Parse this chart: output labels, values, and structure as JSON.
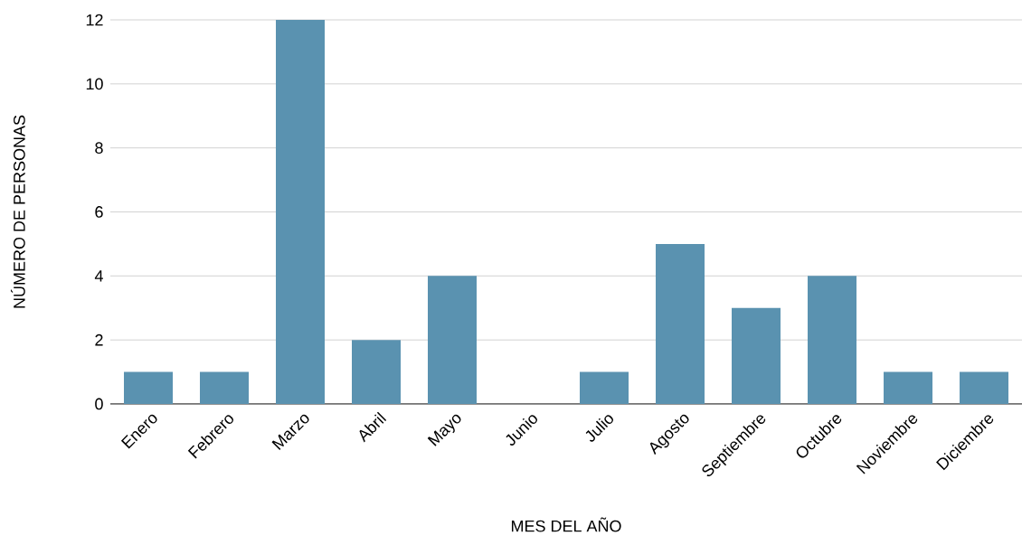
{
  "chart_data": {
    "type": "bar",
    "xlabel": "MES DEL AÑO",
    "ylabel": "NÚMERO DE PERSONAS",
    "categories": [
      "Enero",
      "Febrero",
      "Marzo",
      "Abril",
      "Mayo",
      "Junio",
      "Julio",
      "Agosto",
      "Septiembre",
      "Octubre",
      "Noviembre",
      "Diciembre"
    ],
    "values": [
      1,
      1,
      12,
      2,
      4,
      0,
      1,
      5,
      3,
      4,
      1,
      1
    ],
    "color": "#5a92b0",
    "ylim": [
      0,
      12
    ],
    "yticks": [
      0,
      2,
      4,
      6,
      8,
      10,
      12
    ],
    "grid": "y"
  }
}
